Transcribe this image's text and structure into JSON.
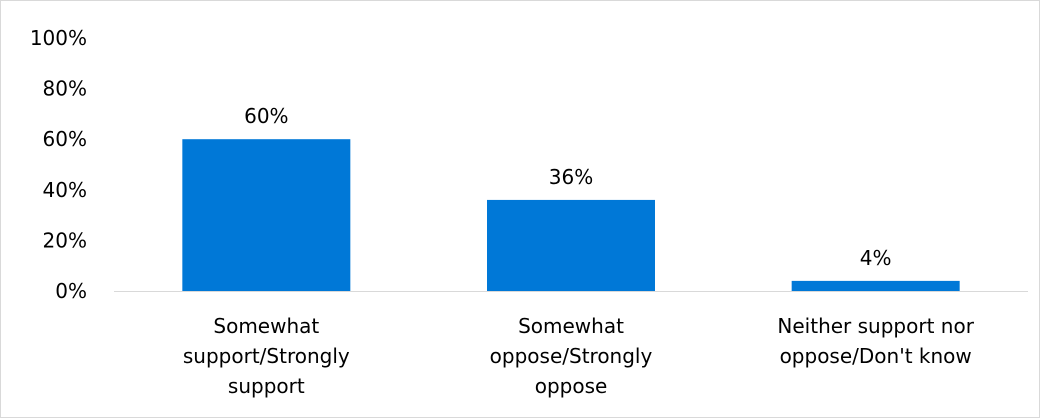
{
  "chart_data": {
    "type": "bar",
    "categories": [
      [
        "Somewhat",
        "support/Strongly",
        "support"
      ],
      [
        "Somewhat",
        "oppose/Strongly",
        "oppose"
      ],
      [
        "Neither support nor",
        "oppose/Don't know"
      ]
    ],
    "values": [
      60,
      36,
      4
    ],
    "data_labels": [
      "60%",
      "36%",
      "4%"
    ],
    "y_ticks": [
      "0%",
      "20%",
      "40%",
      "60%",
      "80%",
      "100%"
    ],
    "ylim": [
      0,
      100
    ],
    "grid": false,
    "legend": "none",
    "bar_color": "#0078D7",
    "axis_color": "#d9d9d9"
  }
}
